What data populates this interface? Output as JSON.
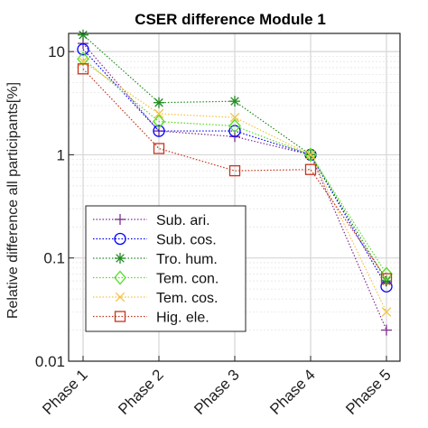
{
  "chart_data": {
    "type": "line",
    "title": "CSER difference Module 1",
    "xlabel": "",
    "ylabel": "Relative difference all participants[%]",
    "y_scale": "log",
    "ylim": [
      0.01,
      15
    ],
    "y_ticks": [
      {
        "value": 0.01,
        "label": "0.01"
      },
      {
        "value": 0.1,
        "label": "0.1"
      },
      {
        "value": 1,
        "label": "1"
      },
      {
        "value": 10,
        "label": "10"
      }
    ],
    "categories": [
      "Phase 1",
      "Phase 2",
      "Phase 3",
      "Phase 4",
      "Phase 5"
    ],
    "grid": true,
    "legend_position": "bottom-left",
    "series": [
      {
        "name": "Sub. ari.",
        "color": "#7E2F8E",
        "marker": "plus",
        "values": [
          12.0,
          1.7,
          1.5,
          1.0,
          0.02
        ]
      },
      {
        "name": "Sub. cos.",
        "color": "#0000FF",
        "marker": "circle",
        "values": [
          10.5,
          1.7,
          1.7,
          1.0,
          0.053
        ]
      },
      {
        "name": "Tro. hum.",
        "color": "#238B23",
        "marker": "asterisk",
        "values": [
          14.5,
          3.2,
          3.3,
          1.0,
          0.06
        ]
      },
      {
        "name": "Tem. con.",
        "color": "#55DD22",
        "marker": "diamond",
        "values": [
          8.5,
          2.1,
          1.9,
          1.0,
          0.07
        ]
      },
      {
        "name": "Tem. cos.",
        "color": "#F5C242",
        "marker": "x",
        "values": [
          8.0,
          2.5,
          2.3,
          1.0,
          0.03
        ]
      },
      {
        "name": "Hig. ele.",
        "color": "#C8331C",
        "marker": "square",
        "values": [
          6.8,
          1.15,
          0.7,
          0.72,
          0.063
        ]
      }
    ]
  }
}
